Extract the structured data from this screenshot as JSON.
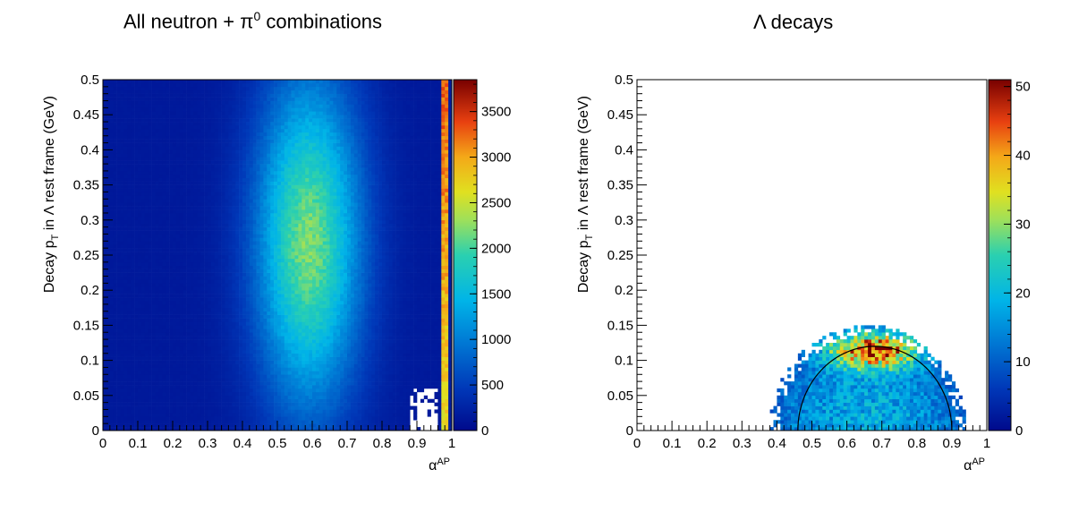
{
  "chart_data": [
    {
      "type": "heatmap",
      "title": "All neutron + π0 combinations",
      "title_parts": {
        "pre": "All neutron + π",
        "sup": "0",
        "post": " combinations"
      },
      "xlabel": "α",
      "xlabel_sup": "AP",
      "ylabel": "Decay p",
      "ylabel_sub": "T",
      "ylabel_post": " in Λ rest frame (GeV)",
      "xlim": [
        0,
        1
      ],
      "ylim": [
        0,
        0.5
      ],
      "x_ticks": [
        "0",
        "0.1",
        "0.2",
        "0.3",
        "0.4",
        "0.5",
        "0.6",
        "0.7",
        "0.8",
        "0.9",
        "1"
      ],
      "y_ticks": [
        "0",
        "0.05",
        "0.1",
        "0.15",
        "0.2",
        "0.25",
        "0.3",
        "0.35",
        "0.4",
        "0.45",
        "0.5"
      ],
      "z_range": [
        0,
        3850
      ],
      "z_ticks": [
        "0",
        "500",
        "1000",
        "1500",
        "2000",
        "2500",
        "3000",
        "3500"
      ],
      "palette": "rainbow",
      "distribution": {
        "peak_x": 0.59,
        "peak_y": 0.27,
        "peak_value": 2200,
        "sigma_x": 0.105,
        "sigma_y": 0.165,
        "floor_value": 150,
        "edge_spike": {
          "x_range": [
            0.97,
            0.99
          ],
          "peak_value": 3800
        },
        "empty_region": "lower-right corner near x 0.88–0.96, y 0–0.06"
      }
    },
    {
      "type": "heatmap",
      "title": "Λ decays",
      "xlabel": "α",
      "xlabel_sup": "AP",
      "ylabel": "Decay p",
      "ylabel_sub": "T",
      "ylabel_post": " in Λ rest frame (GeV)",
      "xlim": [
        0,
        1
      ],
      "ylim": [
        0,
        0.5
      ],
      "x_ticks": [
        "0",
        "0.1",
        "0.2",
        "0.3",
        "0.4",
        "0.5",
        "0.6",
        "0.7",
        "0.8",
        "0.9",
        "1"
      ],
      "y_ticks": [
        "0",
        "0.05",
        "0.1",
        "0.15",
        "0.2",
        "0.25",
        "0.3",
        "0.35",
        "0.4",
        "0.45",
        "0.5"
      ],
      "z_range": [
        0,
        51
      ],
      "z_ticks": [
        "0",
        "10",
        "20",
        "30",
        "40",
        "50"
      ],
      "palette": "rainbow",
      "distribution": {
        "x_range": [
          0.38,
          0.94
        ],
        "y_range": [
          0,
          0.15
        ],
        "ridge_center_x": 0.68,
        "ridge_y": 0.115,
        "ridge_value": 50,
        "base_value": 10
      },
      "overlay_curve": {
        "type": "half-ellipse",
        "center_x": 0.68,
        "semi_axis_x": 0.22,
        "semi_axis_y": 0.12
      }
    }
  ]
}
